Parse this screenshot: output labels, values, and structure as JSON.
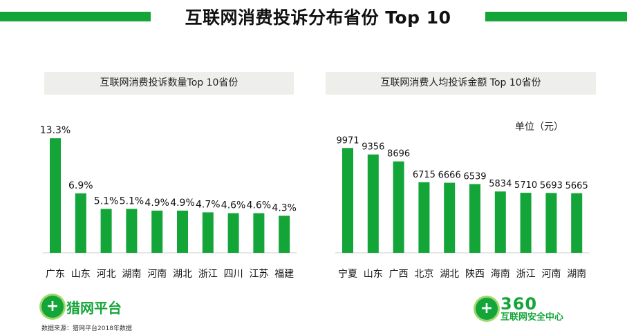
{
  "title": "互联网消费投诉分布省份 Top 10",
  "chart_data": [
    {
      "type": "bar",
      "title": "互联网消费投诉数量Top  10省份",
      "categories": [
        "广东",
        "山东",
        "河北",
        "湖南",
        "河南",
        "湖北",
        "浙江",
        "四川",
        "江苏",
        "福建"
      ],
      "values": [
        13.3,
        6.9,
        5.1,
        5.1,
        4.9,
        4.9,
        4.7,
        4.6,
        4.6,
        4.3
      ],
      "value_labels": [
        "13.3%",
        "6.9%",
        "5.1%",
        "5.1%",
        "4.9%",
        "4.9%",
        "4.7%",
        "4.6%",
        "4.6%",
        "4.3%"
      ],
      "ylim": [
        0,
        15
      ],
      "grid": false,
      "bar_color": "#13a538"
    },
    {
      "type": "bar",
      "title": "互联网消费人均投诉金额  Top 10省份",
      "unit_label": "单位（元）",
      "categories": [
        "宁夏",
        "山东",
        "广西",
        "北京",
        "湖北",
        "陕西",
        "海南",
        "浙江",
        "河南",
        "湖南"
      ],
      "values": [
        9971,
        9356,
        8696,
        6715,
        6666,
        6539,
        5834,
        5710,
        5693,
        5665
      ],
      "value_labels": [
        "9971",
        "9356",
        "8696",
        "6715",
        "6666",
        "6539",
        "5834",
        "5710",
        "5693",
        "5665"
      ],
      "ylim": [
        0,
        11500
      ],
      "grid": false,
      "bar_color": "#13a538"
    }
  ],
  "logos": {
    "left": {
      "badge_glyph": "+",
      "text": "猎网平台",
      "icon": "shield-plus-icon"
    },
    "right": {
      "badge_glyph": "+",
      "brand": "360",
      "text": "互联网安全中心",
      "icon": "shield-plus-icon"
    }
  },
  "source": "数据来源：猎网平台2018年数据",
  "colors": {
    "accent": "#13a538",
    "banner": "#eeeeea"
  }
}
